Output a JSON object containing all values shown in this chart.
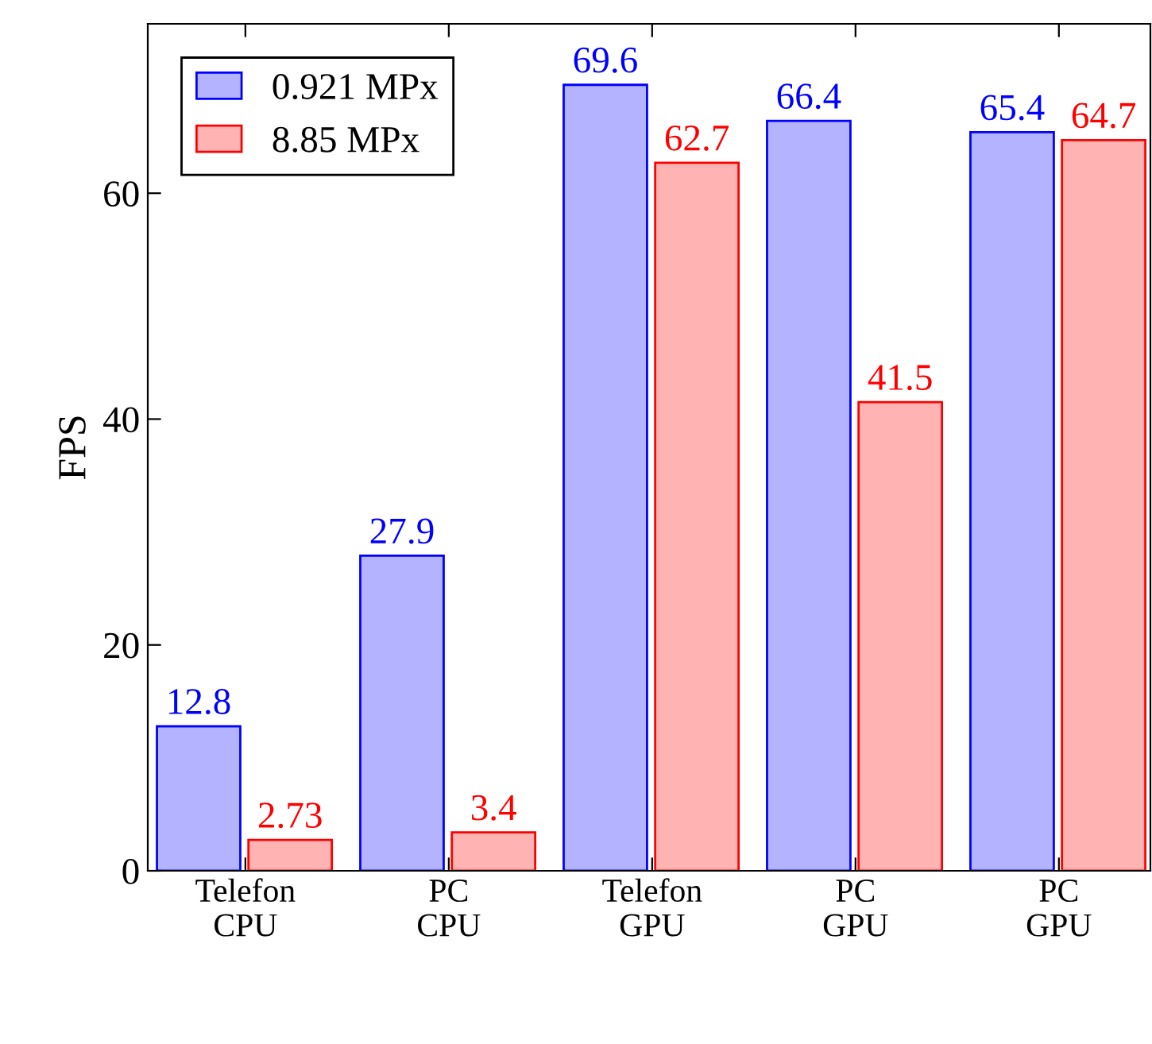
{
  "chart_data": {
    "type": "bar",
    "ylabel": "FPS",
    "categories": [
      "Telefon\nCPU",
      "PC\nCPU",
      "Telefon\nGPU",
      "PC\nGPU",
      "PC\nGPU"
    ],
    "series": [
      {
        "name": "0.921 MPx",
        "color": "#b3b3ff",
        "values": [
          12.8,
          27.9,
          69.6,
          66.4,
          65.4
        ]
      },
      {
        "name": "8.85 MPx",
        "color": "#ffb3b3",
        "values": [
          2.73,
          3.4,
          62.7,
          41.5,
          64.7
        ]
      }
    ],
    "ylim": [
      0,
      75
    ],
    "yticks": [
      0,
      20,
      40,
      60
    ],
    "data_labels": true,
    "legend": "top left",
    "grid": false
  }
}
